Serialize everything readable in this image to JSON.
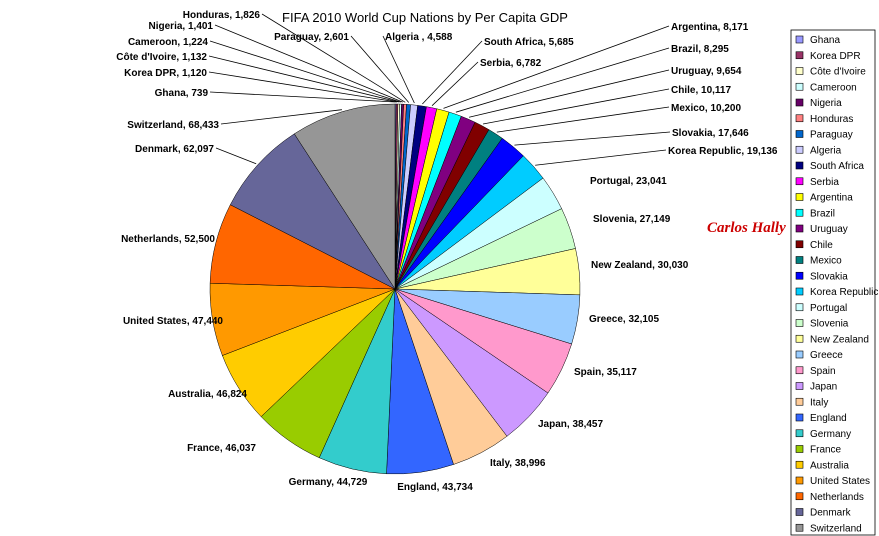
{
  "chart_data": {
    "type": "pie",
    "title": "FIFA 2010 World Cup Nations by Per Capita GDP",
    "categories": [
      "Ghana",
      "Korea DPR",
      "Côte d'Ivoire",
      "Cameroon",
      "Nigeria",
      "Honduras",
      "Paraguay",
      "Algeria",
      "South Africa",
      "Serbia",
      "Argentina",
      "Brazil",
      "Uruguay",
      "Chile",
      "Mexico",
      "Slovakia",
      "Korea Republic",
      "Portugal",
      "Slovenia",
      "New Zealand",
      "Greece",
      "Spain",
      "Japan",
      "Italy",
      "England",
      "Germany",
      "France",
      "Australia",
      "United States",
      "Netherlands",
      "Denmark",
      "Switzerland"
    ],
    "values": [
      739,
      1120,
      1132,
      1224,
      1401,
      1826,
      2601,
      4588,
      5685,
      6782,
      8171,
      8295,
      9654,
      10117,
      10200,
      17646,
      19136,
      23041,
      27149,
      30030,
      32105,
      35117,
      38457,
      38996,
      43734,
      44729,
      46037,
      46824,
      47440,
      52500,
      62097,
      68433
    ],
    "data_labels": [
      "Ghana, 739",
      "Korea DPR, 1,120",
      "Côte d'Ivoire, 1,132",
      "Cameroon, 1,224",
      "Nigeria, 1,401",
      "Honduras, 1,826",
      "Paraguay, 2,601",
      "Algeria , 4,588",
      "South Africa, 5,685",
      "Serbia, 6,782",
      "Argentina, 8,171",
      "Brazil, 8,295",
      "Uruguay, 9,654",
      "Chile, 10,117",
      "Mexico, 10,200",
      "Slovakia, 17,646",
      "Korea Republic, 19,136",
      "Portugal, 23,041",
      "Slovenia, 27,149",
      "New Zealand, 30,030",
      "Greece, 32,105",
      "Spain, 35,117",
      "Japan, 38,457",
      "Italy, 38,996",
      "England, 43,734",
      "Germany, 44,729",
      "France, 46,037",
      "Australia, 46,824",
      "United States, 47,440",
      "Netherlands, 52,500",
      "Denmark, 62,097",
      "Switzerland, 68,433"
    ],
    "colors": [
      "#9999ff",
      "#993366",
      "#ffffcc",
      "#ccffff",
      "#660066",
      "#ff8080",
      "#0066cc",
      "#ccccff",
      "#000080",
      "#ff00ff",
      "#ffff00",
      "#00ffff",
      "#800080",
      "#800000",
      "#008080",
      "#0000ff",
      "#00ccff",
      "#ccffff",
      "#ccffcc",
      "#ffff99",
      "#99ccff",
      "#ff99cc",
      "#cc99ff",
      "#ffcc99",
      "#3366ff",
      "#33cccc",
      "#99cc00",
      "#ffcc00",
      "#ff9900",
      "#ff6600",
      "#666699",
      "#969696"
    ],
    "legend_position": "right"
  },
  "watermark": "Carlos Hally",
  "bottom_mark": "."
}
